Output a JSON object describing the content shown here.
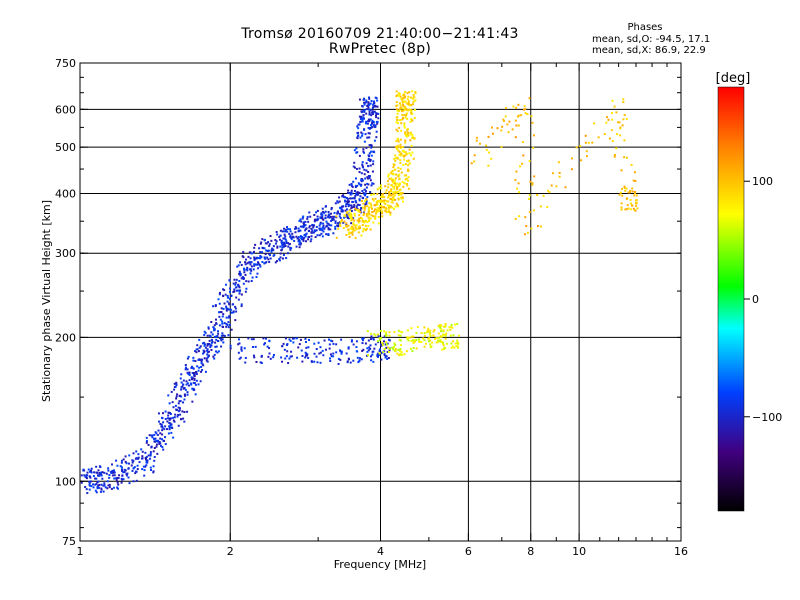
{
  "header": {
    "title_line1": "Tromsø 20160709 21:40:00−21:41:43",
    "title_line2": "RwPretec (8p)"
  },
  "phase_stats": {
    "title": "Phases",
    "o_line": "mean, sd,O: -94.5, 17.1",
    "x_line": "mean, sd,X: 86.9, 22.9"
  },
  "chart_data": {
    "type": "scatter",
    "title": "Tromsø 20160709 21:40:00−21:41:43",
    "subtitle": "RwPretec (8p)",
    "xlabel": "Frequency [MHz]",
    "ylabel": "Stationary phase Virtual Height [km]",
    "xscale": "log",
    "yscale": "log",
    "xlim": [
      1,
      16
    ],
    "ylim": [
      75,
      750
    ],
    "xticks": [
      1,
      2,
      4,
      6,
      8,
      10,
      16
    ],
    "yticks": [
      75,
      100,
      200,
      300,
      400,
      500,
      600,
      750
    ],
    "x_grid": [
      2,
      4,
      6,
      8,
      10
    ],
    "y_grid": [
      100,
      200,
      300,
      400,
      500,
      600
    ],
    "grid": true,
    "colorbar": {
      "label": "[deg]",
      "ticks": [
        100,
        0,
        -100
      ],
      "range": [
        -180,
        180
      ],
      "placement": "right"
    },
    "series": [
      {
        "description": "O-mode F trace (blue, phase ≈ -95°)",
        "color_phase": -95,
        "points": [
          [
            1.0,
            100
          ],
          [
            1.1,
            101
          ],
          [
            1.2,
            103
          ],
          [
            1.35,
            110
          ],
          [
            1.45,
            125
          ],
          [
            1.55,
            140
          ],
          [
            1.65,
            160
          ],
          [
            1.75,
            180
          ],
          [
            1.85,
            200
          ],
          [
            1.95,
            225
          ],
          [
            2.05,
            255
          ],
          [
            2.2,
            285
          ],
          [
            2.4,
            305
          ],
          [
            2.6,
            320
          ],
          [
            2.8,
            335
          ],
          [
            3.0,
            345
          ],
          [
            3.2,
            355
          ],
          [
            3.4,
            370
          ],
          [
            3.6,
            390
          ],
          [
            3.7,
            430
          ],
          [
            3.75,
            520
          ],
          [
            3.8,
            600
          ]
        ]
      },
      {
        "description": "X-mode F trace (yellow, phase ≈ +90°)",
        "color_phase": 90,
        "points": [
          [
            3.4,
            340
          ],
          [
            3.6,
            350
          ],
          [
            3.8,
            365
          ],
          [
            4.0,
            380
          ],
          [
            4.2,
            395
          ],
          [
            4.35,
            420
          ],
          [
            4.45,
            470
          ],
          [
            4.5,
            540
          ],
          [
            4.5,
            620
          ]
        ]
      },
      {
        "description": "Lower echo layer near 190 km (O-mode)",
        "color_phase": -95,
        "points": [
          [
            2.0,
            188
          ],
          [
            2.4,
            188
          ],
          [
            2.8,
            188
          ],
          [
            3.2,
            187
          ],
          [
            3.6,
            188
          ],
          [
            4.0,
            190
          ]
        ]
      },
      {
        "description": "Lower echo layer near 190 km (X-mode)",
        "color_phase": 70,
        "points": [
          [
            3.9,
            195
          ],
          [
            4.3,
            195
          ],
          [
            4.7,
            198
          ],
          [
            5.1,
            200
          ],
          [
            5.5,
            202
          ]
        ]
      },
      {
        "description": "Sporadic returns at high frequency",
        "color_phase": 100,
        "points": [
          [
            6.2,
            470
          ],
          [
            7.8,
            620
          ],
          [
            7.8,
            330
          ],
          [
            11.8,
            600
          ],
          [
            12.6,
            390
          ]
        ]
      }
    ]
  }
}
